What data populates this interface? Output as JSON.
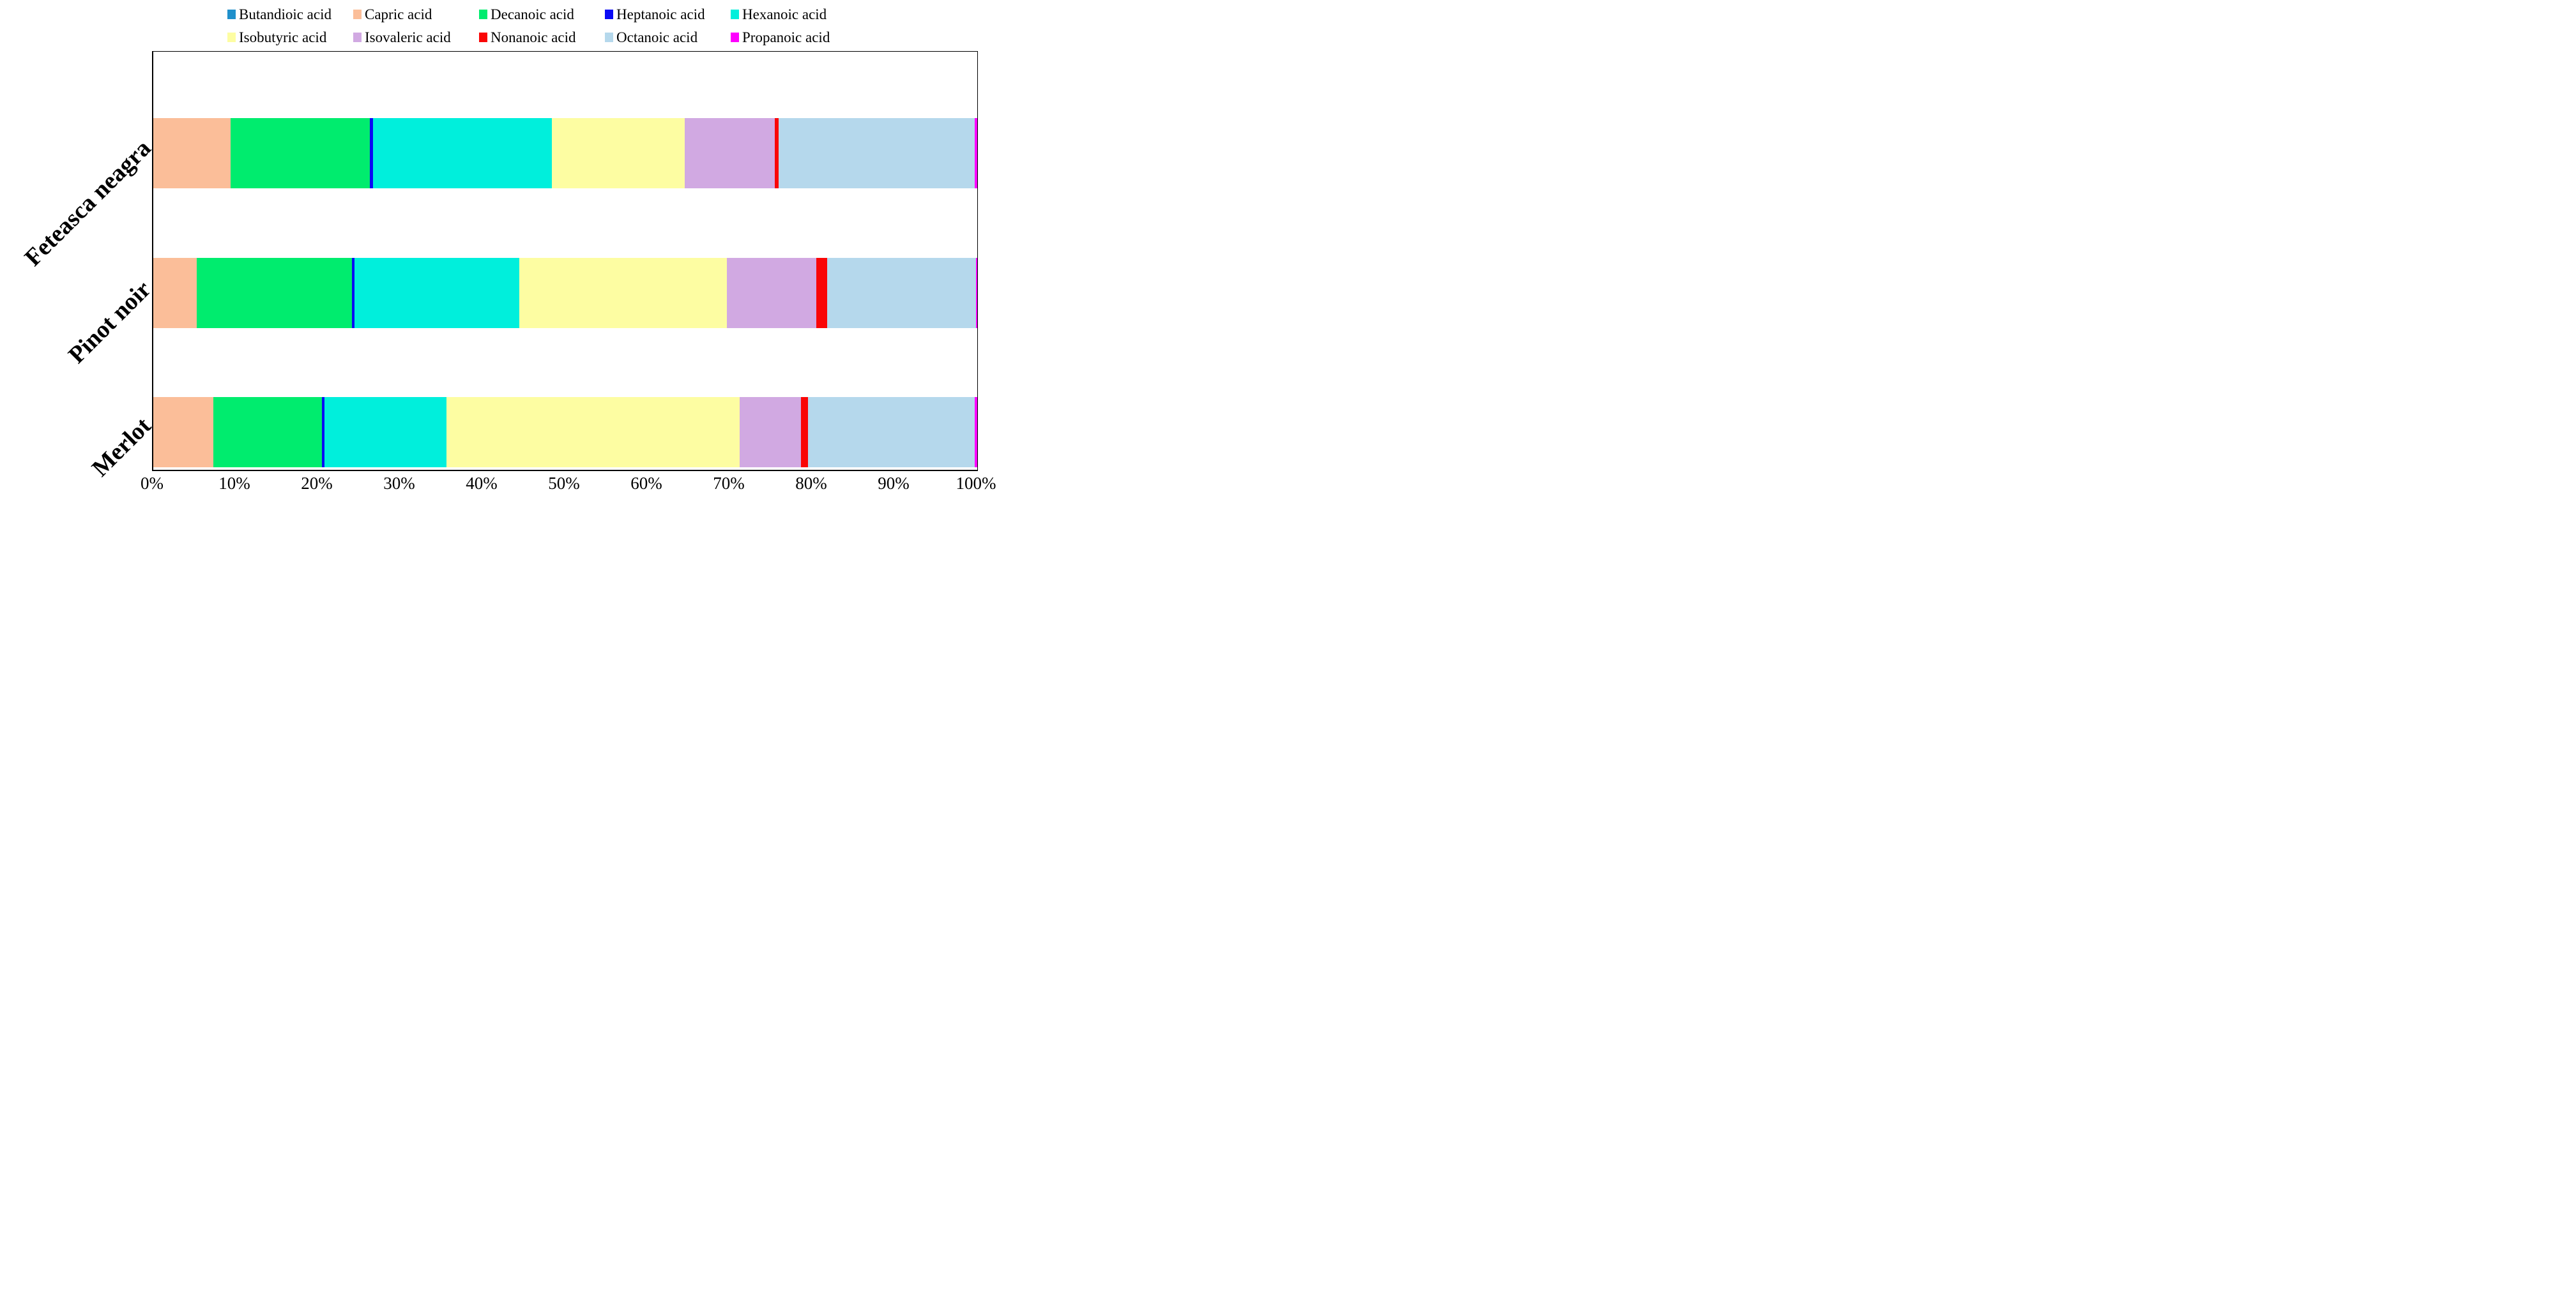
{
  "chart_data": {
    "type": "bar",
    "subtype": "horizontal-100%-stacked",
    "title": "",
    "xlabel": "",
    "ylabel": "",
    "grid": false,
    "legend_position": "top",
    "x_axis": {
      "range": [
        0,
        100
      ],
      "tick_unit_percent": 10,
      "ticks": [
        "0%",
        "10%",
        "20%",
        "30%",
        "40%",
        "50%",
        "60%",
        "70%",
        "80%",
        "90%",
        "100%"
      ]
    },
    "categories": [
      "Feteasca neagra",
      "Pinot noir",
      "Merlot"
    ],
    "series": [
      {
        "name": "Butandioic acid",
        "color": "#2090CB",
        "values": [
          0,
          0,
          0
        ]
      },
      {
        "name": "Capric acid",
        "color": "#FBBE99",
        "values": [
          9.4,
          5.3,
          7.3
        ]
      },
      {
        "name": "Decanoic acid",
        "color": "#00EC6E",
        "values": [
          16.9,
          18.8,
          13.2
        ]
      },
      {
        "name": "Heptanoic acid",
        "color": "#0A0AF5",
        "values": [
          0.4,
          0.35,
          0.3
        ]
      },
      {
        "name": "Hexanoic acid",
        "color": "#00EFDC",
        "values": [
          21.7,
          20.0,
          14.8
        ]
      },
      {
        "name": "Isobutyric acid",
        "color": "#FDFDA2",
        "values": [
          16.1,
          25.2,
          35.6
        ]
      },
      {
        "name": "Isovaleric acid",
        "color": "#D1A9E2",
        "values": [
          10.9,
          10.8,
          7.4
        ]
      },
      {
        "name": "Nonanoic acid",
        "color": "#FA0606",
        "values": [
          0.5,
          1.3,
          0.9
        ]
      },
      {
        "name": "Octanoic acid",
        "color": "#B5D8EC",
        "values": [
          23.8,
          18.1,
          20.2
        ]
      },
      {
        "name": "Propanoic acid",
        "color": "#FE00FE",
        "values": [
          0.3,
          0.15,
          0.3
        ]
      }
    ]
  },
  "axis_color": "#000000",
  "text_color": "#000000",
  "background_color": "#FFFFFF"
}
